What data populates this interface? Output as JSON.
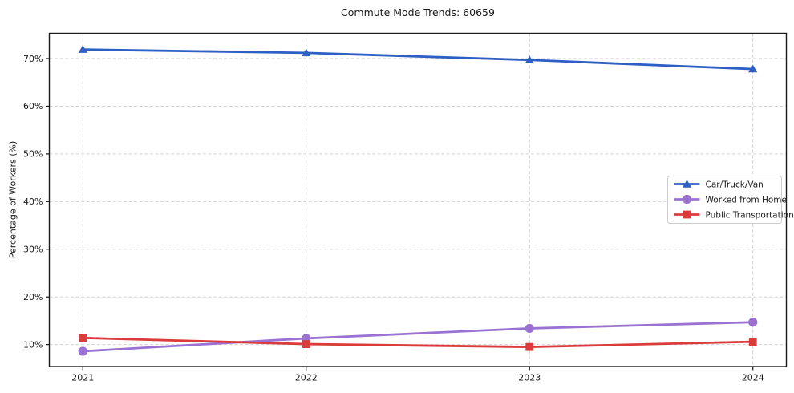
{
  "chart_data": {
    "type": "line",
    "title": "Commute Mode Trends: 60659",
    "xlabel": "",
    "ylabel": "Percentage of Workers (%)",
    "x": [
      2021,
      2022,
      2023,
      2024
    ],
    "x_tick_labels": [
      "2021",
      "2022",
      "2023",
      "2024"
    ],
    "y_ticks": [
      10,
      20,
      30,
      40,
      50,
      60,
      70
    ],
    "y_tick_suffix": "%",
    "xlim": [
      2020.85,
      2024.15
    ],
    "ylim": [
      5.4,
      75.3
    ],
    "grid": true,
    "grid_color": "#cccccc",
    "axis_color": "#1a1a1a",
    "legend_position": "center-right",
    "series": [
      {
        "name": "Car/Truck/Van",
        "color": "#2e5fc4",
        "marker": "triangle",
        "values": [
          71.9,
          71.2,
          69.7,
          67.8
        ]
      },
      {
        "name": "Worked from Home",
        "color": "#9b72d2",
        "marker": "circle",
        "values": [
          8.6,
          11.3,
          13.4,
          14.7
        ]
      },
      {
        "name": "Public Transportation",
        "color": "#dc3b3b",
        "marker": "square",
        "values": [
          11.4,
          10.1,
          9.5,
          10.6
        ]
      }
    ]
  }
}
